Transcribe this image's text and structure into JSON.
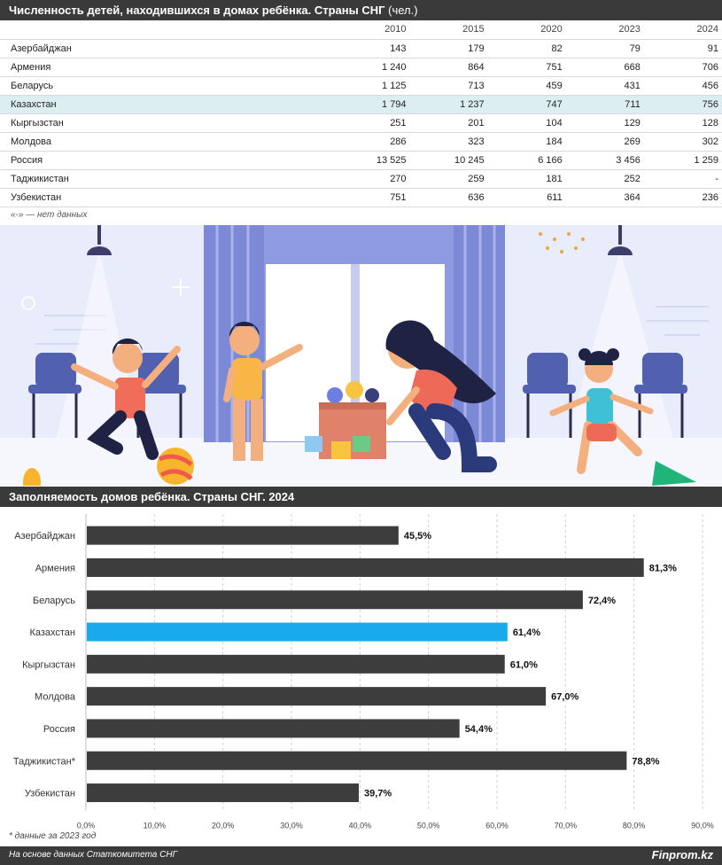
{
  "table": {
    "title": "Численность детей, находившихся в домах ребёнка. Страны СНГ",
    "unit": "(чел.)",
    "years": [
      "2010",
      "2015",
      "2020",
      "2023",
      "2024"
    ],
    "rows": [
      {
        "country": "Азербайджан",
        "values": [
          "143",
          "179",
          "82",
          "79",
          "91"
        ]
      },
      {
        "country": "Армения",
        "values": [
          "1 240",
          "864",
          "751",
          "668",
          "706"
        ]
      },
      {
        "country": "Беларусь",
        "values": [
          "1 125",
          "713",
          "459",
          "431",
          "456"
        ]
      },
      {
        "country": "Казахстан",
        "values": [
          "1 794",
          "1 237",
          "747",
          "711",
          "756"
        ]
      },
      {
        "country": "Кыргызстан",
        "values": [
          "251",
          "201",
          "104",
          "129",
          "128"
        ]
      },
      {
        "country": "Молдова",
        "values": [
          "286",
          "323",
          "184",
          "269",
          "302"
        ]
      },
      {
        "country": "Россия",
        "values": [
          "13 525",
          "10 245",
          "6 166",
          "3 456",
          "1 259"
        ]
      },
      {
        "country": "Таджикистан",
        "values": [
          "270",
          "259",
          "181",
          "252",
          "-"
        ]
      },
      {
        "country": "Узбекистан",
        "values": [
          "751",
          "636",
          "611",
          "364",
          "236"
        ]
      }
    ],
    "note": "«-» — нет данных"
  },
  "chart_data": {
    "type": "bar",
    "orientation": "horizontal",
    "title": "Заполняемость домов ребёнка. Страны СНГ. 2024",
    "categories": [
      "Азербайджан",
      "Армения",
      "Беларусь",
      "Казахстан",
      "Кыргызстан",
      "Молдова",
      "Россия",
      "Таджикистан*",
      "Узбекистан"
    ],
    "values": [
      45.5,
      81.3,
      72.4,
      61.4,
      61.0,
      67.0,
      54.4,
      78.8,
      39.7
    ],
    "value_labels": [
      "45,5%",
      "81,3%",
      "72,4%",
      "61,4%",
      "61,0%",
      "67,0%",
      "54,4%",
      "78,8%",
      "39,7%"
    ],
    "highlight": "Казахстан",
    "xlim": [
      0,
      90
    ],
    "ticks": [
      "0,0%",
      "10,0%",
      "20,0%",
      "30,0%",
      "40,0%",
      "50,0%",
      "60,0%",
      "70,0%",
      "80,0%",
      "90,0%"
    ],
    "grid": true,
    "colors": {
      "default": "#3d3d3d",
      "highlight": "#19aaec"
    },
    "note": "* данные за 2023 год"
  },
  "footer": {
    "source": "На основе данных Статкомитета СНГ",
    "brand": "Finprom.kz"
  }
}
